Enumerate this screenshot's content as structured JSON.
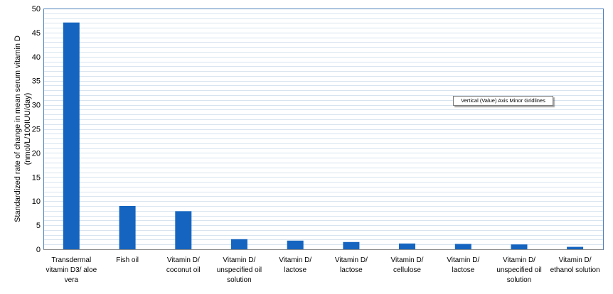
{
  "chart_data": {
    "type": "bar",
    "categories": [
      [
        "Transdermal",
        "vitamin D3/ aloe",
        "vera"
      ],
      [
        "Fish oil"
      ],
      [
        "Vitamin D/",
        "coconut oil"
      ],
      [
        "Vitamin D/",
        "unspecified oil",
        "solution"
      ],
      [
        "Vitamin D/",
        "lactose"
      ],
      [
        "Vitamin D/",
        "lactose"
      ],
      [
        "Vitamin D/",
        "cellulose"
      ],
      [
        "Vitamin D/",
        "lactose"
      ],
      [
        "Vitamin D/",
        "unspecified oil",
        "solution"
      ],
      [
        "Vitamin D/",
        "ethanol solution"
      ]
    ],
    "values": [
      47.1,
      9.0,
      7.9,
      2.1,
      1.8,
      1.5,
      1.2,
      1.1,
      1.0,
      0.5
    ],
    "ylabel_lines": [
      "Standardized rate of change in mean serum vitamin D",
      "(nmol/L/100IUU/day)"
    ],
    "ylim": [
      0,
      50
    ],
    "yticks": [
      0,
      5,
      10,
      15,
      20,
      25,
      30,
      35,
      40,
      45,
      50
    ],
    "bar_color": "#1565c0",
    "gridline_color": "#d8e4f0",
    "border_color": "#4f81bd",
    "grid": true,
    "minor_grid": true
  },
  "tooltip": {
    "text": "Vertical (Value) Axis Minor Gridlines"
  }
}
